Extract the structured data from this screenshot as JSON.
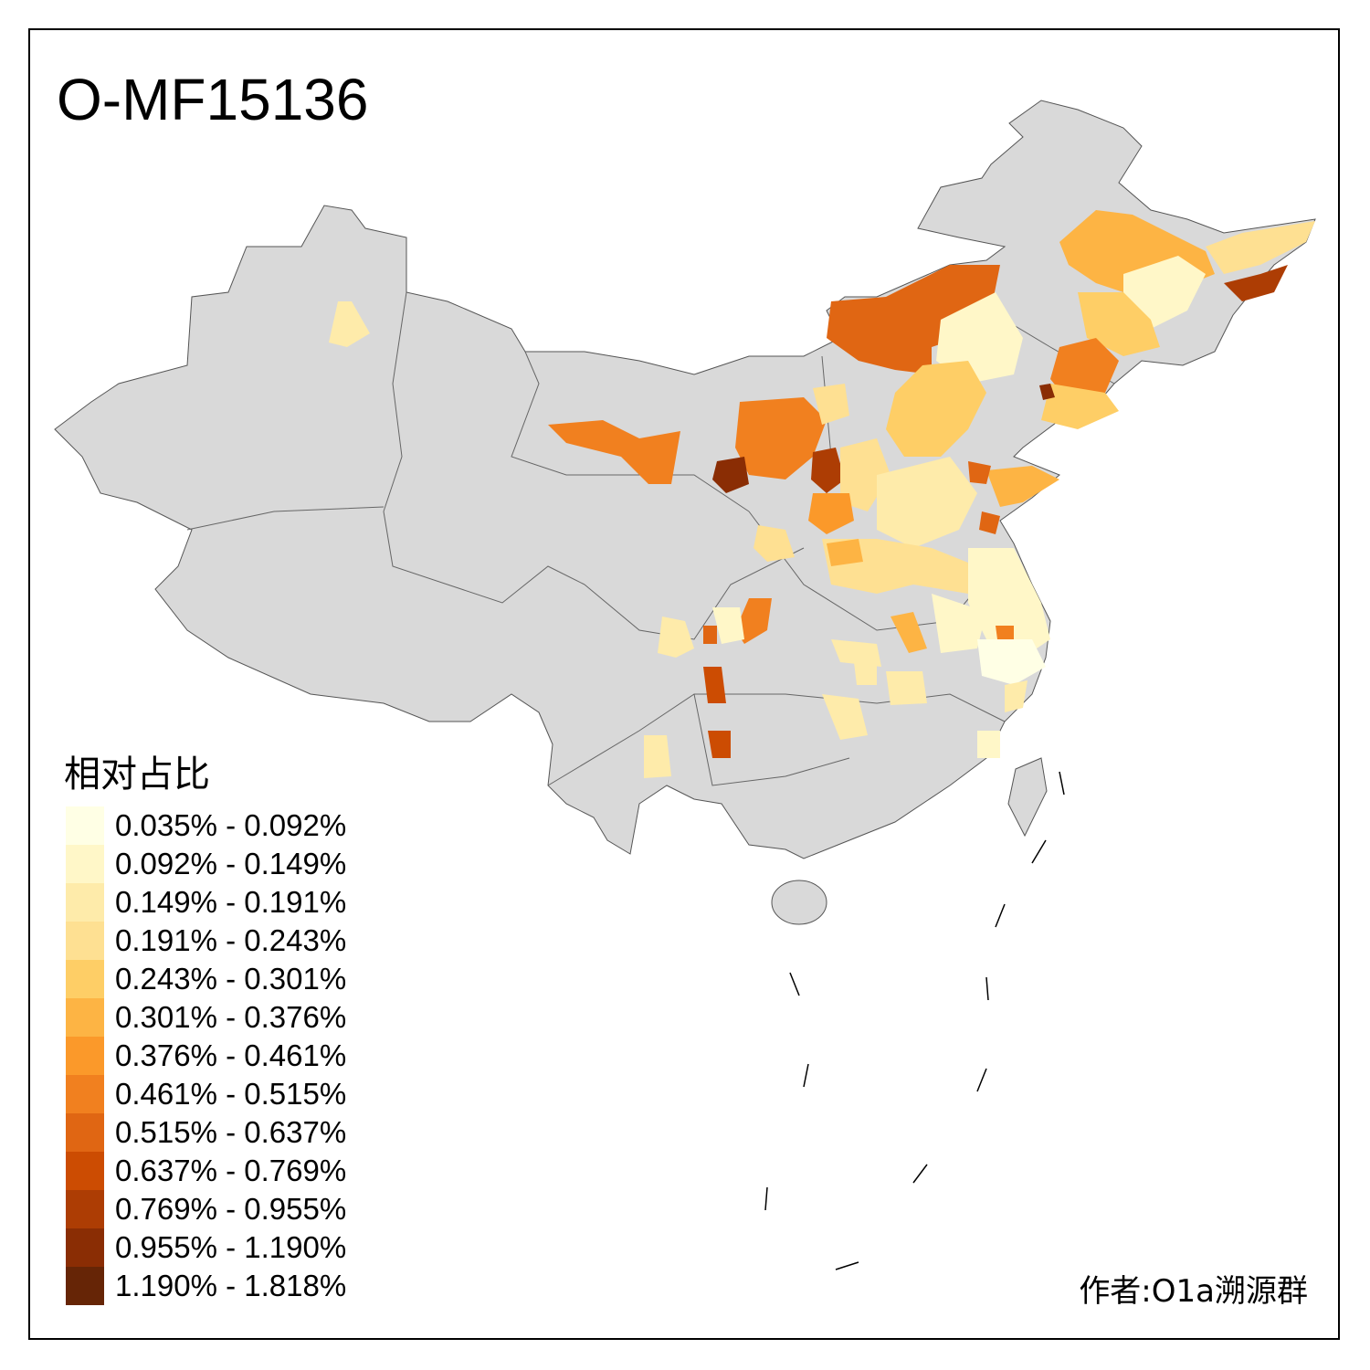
{
  "title": "O-MF15136",
  "legend": {
    "title": "相对占比",
    "items": [
      {
        "label": "0.035% - 0.092%",
        "color": "#FFFFE5"
      },
      {
        "label": "0.092% - 0.149%",
        "color": "#FFF7C8"
      },
      {
        "label": "0.149% - 0.191%",
        "color": "#FEEBAA"
      },
      {
        "label": "0.191% - 0.243%",
        "color": "#FEE092"
      },
      {
        "label": "0.243% - 0.301%",
        "color": "#FECE66"
      },
      {
        "label": "0.301% - 0.376%",
        "color": "#FDB444"
      },
      {
        "label": "0.376% - 0.461%",
        "color": "#FB992A"
      },
      {
        "label": "0.461% - 0.515%",
        "color": "#F1801F"
      },
      {
        "label": "0.515% - 0.637%",
        "color": "#E06613"
      },
      {
        "label": "0.637% - 0.769%",
        "color": "#CC4C02"
      },
      {
        "label": "0.769% - 0.955%",
        "color": "#AD3D04"
      },
      {
        "label": "0.955% - 1.190%",
        "color": "#8A2D04"
      },
      {
        "label": "1.190% - 1.818%",
        "color": "#662506"
      }
    ]
  },
  "base_color": "#D9D9D9",
  "credit": "作者:O1a溯源群"
}
